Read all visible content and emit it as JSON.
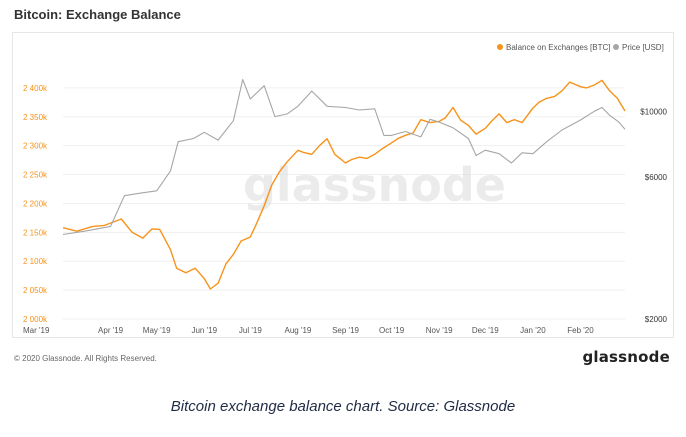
{
  "page": {
    "title": "Bitcoin: Exchange Balance",
    "copyright": "© 2020 Glassnode. All Rights Reserved.",
    "logo": "glassnode",
    "watermark": "glassnode",
    "caption": "Bitcoin exchange balance chart. Source: Glassnode"
  },
  "colors": {
    "balance": "#f7931a",
    "price": "#a6a6a6",
    "axis_text_left": "#f7931a",
    "axis_text_right": "#333333",
    "grid": "#efefef"
  },
  "chart_data": {
    "type": "line",
    "title": "Bitcoin: Exchange Balance",
    "legend_position": "top-right",
    "grid": true,
    "x_ticks": [
      "Mar '19",
      "Apr '19",
      "May '19",
      "Jun '19",
      "Jul '19",
      "Aug '19",
      "Sep '19",
      "Oct '19",
      "Nov '19",
      "Dec '19",
      "Jan '20",
      "Feb '20"
    ],
    "x_range": [
      "2019-03-01",
      "2020-03-01"
    ],
    "y_left": {
      "range": [
        2000000,
        2450000
      ],
      "ticks": [
        2000000,
        2050000,
        2100000,
        2150000,
        2200000,
        2250000,
        2300000,
        2350000,
        2400000
      ],
      "tick_labels": [
        "2 000k",
        "2 050k",
        "2 100k",
        "2 150k",
        "2 200k",
        "2 250k",
        "2 300k",
        "2 350k",
        "2 400k"
      ]
    },
    "y_right": {
      "scale": "log",
      "range": [
        2000,
        15000
      ],
      "ticks": [
        2000,
        6000,
        10000
      ],
      "tick_labels": [
        "$2000",
        "$6000",
        "$10000"
      ]
    },
    "series": [
      {
        "name": "Balance on Exchanges [BTC]",
        "axis": "left",
        "color": "#f7931a",
        "x": [
          "2019-03-01",
          "2019-03-10",
          "2019-03-20",
          "2019-03-28",
          "2019-04-03",
          "2019-04-08",
          "2019-04-15",
          "2019-04-22",
          "2019-04-28",
          "2019-05-03",
          "2019-05-10",
          "2019-05-14",
          "2019-05-20",
          "2019-05-26",
          "2019-06-01",
          "2019-06-05",
          "2019-06-10",
          "2019-06-15",
          "2019-06-20",
          "2019-06-25",
          "2019-07-01",
          "2019-07-05",
          "2019-07-10",
          "2019-07-15",
          "2019-07-20",
          "2019-07-25",
          "2019-08-01",
          "2019-08-05",
          "2019-08-10",
          "2019-08-15",
          "2019-08-20",
          "2019-08-25",
          "2019-09-01",
          "2019-09-05",
          "2019-09-10",
          "2019-09-15",
          "2019-09-20",
          "2019-09-25",
          "2019-10-01",
          "2019-10-05",
          "2019-10-10",
          "2019-10-15",
          "2019-10-20",
          "2019-10-26",
          "2019-11-01",
          "2019-11-05",
          "2019-11-10",
          "2019-11-15",
          "2019-11-20",
          "2019-11-25",
          "2019-12-01",
          "2019-12-05",
          "2019-12-10",
          "2019-12-15",
          "2019-12-20",
          "2019-12-25",
          "2020-01-01",
          "2020-01-05",
          "2020-01-10",
          "2020-01-15",
          "2020-01-20",
          "2020-01-25",
          "2020-02-01",
          "2020-02-05",
          "2020-02-10",
          "2020-02-15",
          "2020-02-20",
          "2020-02-25",
          "2020-03-01"
        ],
        "values": [
          2158000,
          2152000,
          2160000,
          2162000,
          2168000,
          2173000,
          2150000,
          2140000,
          2156000,
          2155000,
          2120000,
          2088000,
          2080000,
          2088000,
          2070000,
          2052000,
          2062000,
          2095000,
          2112000,
          2135000,
          2142000,
          2165000,
          2196000,
          2232000,
          2255000,
          2272000,
          2292000,
          2288000,
          2285000,
          2300000,
          2312000,
          2285000,
          2270000,
          2276000,
          2280000,
          2278000,
          2285000,
          2295000,
          2305000,
          2312000,
          2318000,
          2322000,
          2345000,
          2340000,
          2342000,
          2348000,
          2366000,
          2344000,
          2335000,
          2320000,
          2330000,
          2342000,
          2355000,
          2340000,
          2345000,
          2340000,
          2365000,
          2375000,
          2382000,
          2385000,
          2395000,
          2410000,
          2402000,
          2400000,
          2405000,
          2413000,
          2395000,
          2382000,
          2360000
        ]
      },
      {
        "name": "Price [USD]",
        "axis": "right",
        "color": "#a6a6a6",
        "x": [
          "2019-03-01",
          "2019-03-15",
          "2019-04-01",
          "2019-04-10",
          "2019-04-20",
          "2019-05-01",
          "2019-05-10",
          "2019-05-15",
          "2019-05-25",
          "2019-06-01",
          "2019-06-10",
          "2019-06-20",
          "2019-06-26",
          "2019-07-01",
          "2019-07-10",
          "2019-07-17",
          "2019-07-25",
          "2019-08-01",
          "2019-08-10",
          "2019-08-20",
          "2019-09-01",
          "2019-09-10",
          "2019-09-20",
          "2019-09-26",
          "2019-10-01",
          "2019-10-10",
          "2019-10-20",
          "2019-10-26",
          "2019-11-01",
          "2019-11-10",
          "2019-11-20",
          "2019-11-25",
          "2019-12-01",
          "2019-12-10",
          "2019-12-18",
          "2019-12-25",
          "2020-01-01",
          "2020-01-10",
          "2020-01-20",
          "2020-02-01",
          "2020-02-10",
          "2020-02-15",
          "2020-02-20",
          "2020-02-26",
          "2020-03-01"
        ],
        "values": [
          3850,
          3950,
          4100,
          5200,
          5300,
          5400,
          6300,
          7900,
          8100,
          8500,
          8000,
          9300,
          12800,
          11000,
          12200,
          9600,
          9800,
          10400,
          11700,
          10400,
          10300,
          10100,
          10200,
          8300,
          8300,
          8550,
          8200,
          9400,
          9200,
          8800,
          8100,
          7100,
          7400,
          7200,
          6700,
          7250,
          7200,
          7900,
          8650,
          9350,
          10000,
          10300,
          9700,
          9200,
          8700
        ]
      }
    ]
  }
}
